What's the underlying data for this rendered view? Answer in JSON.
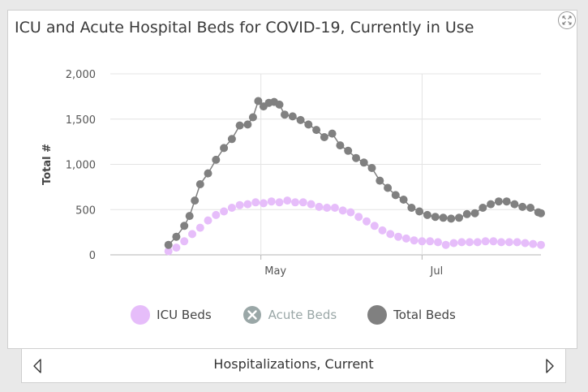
{
  "panel": {
    "footer_label": "Hospitalizations, Current"
  },
  "colors": {
    "icu": "#e6bdfa",
    "acute": "#9aa7a7",
    "total": "#808080",
    "grid": "#e4e4e4",
    "axis": "#b5b5b5"
  },
  "chart_data": {
    "type": "scatter",
    "title": "ICU and Acute Hospital Beds for COVID-19, Currently in Use",
    "ylabel": "Total #",
    "xlabel": "",
    "x_ticks": [
      "May",
      "Jul"
    ],
    "x_tick_dates": [
      "2020-05-01",
      "2020-07-01"
    ],
    "xlim": [
      "2020-03-05",
      "2020-08-15"
    ],
    "ylim": [
      0,
      2000
    ],
    "y_ticks": [
      "0",
      "500",
      "1,000",
      "1,500",
      "2,000"
    ],
    "y_tick_values": [
      0,
      500,
      1000,
      1500,
      2000
    ],
    "grid": true,
    "legend_position": "bottom",
    "series": [
      {
        "name": "ICU Beds",
        "visible": true,
        "points": [
          [
            "2020-03-27",
            40
          ],
          [
            "2020-03-30",
            80
          ],
          [
            "2020-04-02",
            150
          ],
          [
            "2020-04-05",
            230
          ],
          [
            "2020-04-08",
            300
          ],
          [
            "2020-04-11",
            380
          ],
          [
            "2020-04-14",
            440
          ],
          [
            "2020-04-17",
            480
          ],
          [
            "2020-04-20",
            520
          ],
          [
            "2020-04-23",
            550
          ],
          [
            "2020-04-26",
            560
          ],
          [
            "2020-04-29",
            580
          ],
          [
            "2020-05-02",
            570
          ],
          [
            "2020-05-05",
            590
          ],
          [
            "2020-05-08",
            580
          ],
          [
            "2020-05-11",
            600
          ],
          [
            "2020-05-14",
            580
          ],
          [
            "2020-05-17",
            580
          ],
          [
            "2020-05-20",
            560
          ],
          [
            "2020-05-23",
            530
          ],
          [
            "2020-05-26",
            520
          ],
          [
            "2020-05-29",
            520
          ],
          [
            "2020-06-01",
            490
          ],
          [
            "2020-06-04",
            470
          ],
          [
            "2020-06-07",
            420
          ],
          [
            "2020-06-10",
            370
          ],
          [
            "2020-06-13",
            320
          ],
          [
            "2020-06-16",
            270
          ],
          [
            "2020-06-19",
            230
          ],
          [
            "2020-06-22",
            200
          ],
          [
            "2020-06-25",
            180
          ],
          [
            "2020-06-28",
            160
          ],
          [
            "2020-07-01",
            150
          ],
          [
            "2020-07-04",
            150
          ],
          [
            "2020-07-07",
            140
          ],
          [
            "2020-07-10",
            110
          ],
          [
            "2020-07-13",
            130
          ],
          [
            "2020-07-16",
            140
          ],
          [
            "2020-07-19",
            140
          ],
          [
            "2020-07-22",
            140
          ],
          [
            "2020-07-25",
            150
          ],
          [
            "2020-07-28",
            150
          ],
          [
            "2020-07-31",
            140
          ],
          [
            "2020-08-03",
            140
          ],
          [
            "2020-08-06",
            140
          ],
          [
            "2020-08-09",
            130
          ],
          [
            "2020-08-12",
            120
          ],
          [
            "2020-08-15",
            110
          ]
        ]
      },
      {
        "name": "Acute Beds",
        "visible": false,
        "points": []
      },
      {
        "name": "Total Beds",
        "visible": true,
        "points": [
          [
            "2020-03-27",
            110
          ],
          [
            "2020-03-30",
            200
          ],
          [
            "2020-04-02",
            320
          ],
          [
            "2020-04-04",
            430
          ],
          [
            "2020-04-06",
            600
          ],
          [
            "2020-04-08",
            780
          ],
          [
            "2020-04-11",
            900
          ],
          [
            "2020-04-14",
            1050
          ],
          [
            "2020-04-17",
            1180
          ],
          [
            "2020-04-20",
            1280
          ],
          [
            "2020-04-23",
            1430
          ],
          [
            "2020-04-26",
            1440
          ],
          [
            "2020-04-28",
            1520
          ],
          [
            "2020-04-30",
            1700
          ],
          [
            "2020-05-02",
            1640
          ],
          [
            "2020-05-04",
            1680
          ],
          [
            "2020-05-06",
            1690
          ],
          [
            "2020-05-08",
            1660
          ],
          [
            "2020-05-10",
            1550
          ],
          [
            "2020-05-13",
            1530
          ],
          [
            "2020-05-16",
            1490
          ],
          [
            "2020-05-19",
            1440
          ],
          [
            "2020-05-22",
            1380
          ],
          [
            "2020-05-25",
            1300
          ],
          [
            "2020-05-28",
            1340
          ],
          [
            "2020-05-31",
            1210
          ],
          [
            "2020-06-03",
            1150
          ],
          [
            "2020-06-06",
            1070
          ],
          [
            "2020-06-09",
            1020
          ],
          [
            "2020-06-12",
            960
          ],
          [
            "2020-06-15",
            820
          ],
          [
            "2020-06-18",
            740
          ],
          [
            "2020-06-21",
            660
          ],
          [
            "2020-06-24",
            610
          ],
          [
            "2020-06-27",
            520
          ],
          [
            "2020-06-30",
            480
          ],
          [
            "2020-07-03",
            440
          ],
          [
            "2020-07-06",
            420
          ],
          [
            "2020-07-09",
            410
          ],
          [
            "2020-07-12",
            400
          ],
          [
            "2020-07-15",
            410
          ],
          [
            "2020-07-18",
            450
          ],
          [
            "2020-07-21",
            460
          ],
          [
            "2020-07-24",
            520
          ],
          [
            "2020-07-27",
            560
          ],
          [
            "2020-07-30",
            590
          ],
          [
            "2020-08-02",
            590
          ],
          [
            "2020-08-05",
            560
          ],
          [
            "2020-08-08",
            530
          ],
          [
            "2020-08-11",
            520
          ],
          [
            "2020-08-14",
            470
          ],
          [
            "2020-08-15",
            460
          ]
        ]
      }
    ]
  }
}
